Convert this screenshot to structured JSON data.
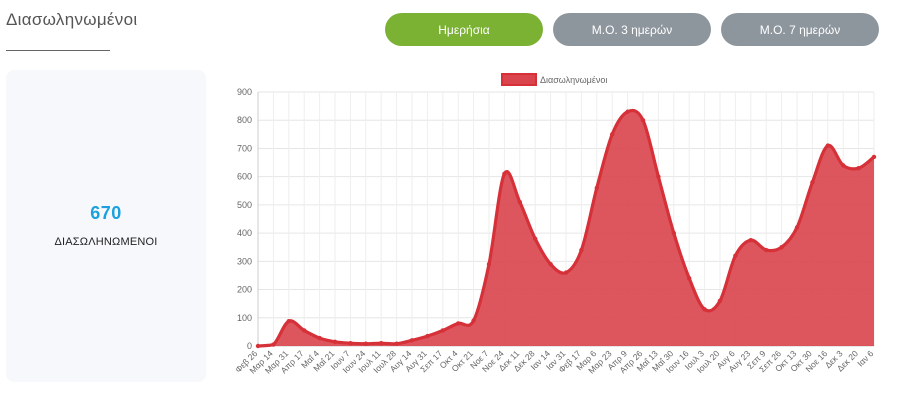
{
  "header": {
    "title": "Διασωληνωμένοι"
  },
  "toggles": {
    "daily": "Ημερήσια",
    "avg3": "Μ.Ο. 3 ημερών",
    "avg7": "Μ.Ο. 7 ημερών"
  },
  "stat": {
    "value": "670",
    "label": "ΔΙΑΣΩΛΗΝΩΜΕΝΟΙ"
  },
  "colors": {
    "accent_green": "#7bb234",
    "inactive_grey": "#8e969d",
    "stat_blue": "#1aa1de",
    "series_fill": "#d9444d",
    "series_line": "#d63038"
  },
  "chart_data": {
    "type": "area",
    "title": "",
    "legend": {
      "label": "Διασωληνωμένοι",
      "position": "top-center"
    },
    "xlabel": "",
    "ylabel": "",
    "ylim": [
      0,
      900
    ],
    "yticks": [
      0,
      100,
      200,
      300,
      400,
      500,
      600,
      700,
      800,
      900
    ],
    "grid": true,
    "xtick_labels": [
      "Φεβ 26",
      "Μαρ 14",
      "Μαρ 31",
      "Απρ 17",
      "Μαΐ 4",
      "Μαΐ 21",
      "Ιουν 7",
      "Ιουν 24",
      "Ιουλ 11",
      "Ιουλ 28",
      "Αυγ 14",
      "Αυγ 31",
      "Σεπ 17",
      "Οκτ 4",
      "Οκτ 21",
      "Νοε 7",
      "Νοε 24",
      "Δεκ 11",
      "Δεκ 28",
      "Ιαν 14",
      "Ιαν 31",
      "Φεβ 17",
      "Μαρ 6",
      "Μαρ 23",
      "Απρ 9",
      "Απρ 26",
      "Μαΐ 13",
      "Μαΐ 30",
      "Ιουν 16",
      "Ιουλ 3",
      "Ιουλ 20",
      "Αυγ 6",
      "Αυγ 23",
      "Σεπ 9",
      "Σεπ 26",
      "Οκτ 13",
      "Οκτ 30",
      "Νοε 16",
      "Δεκ 3",
      "Δεκ 20",
      "Ιαν 6"
    ],
    "series": [
      {
        "name": "Διασωληνωμένοι",
        "x_index": [
          0,
          1,
          2,
          3,
          4,
          5,
          6,
          7,
          8,
          9,
          10,
          11,
          12,
          13,
          14,
          15,
          16,
          17,
          18,
          19,
          20,
          21,
          22,
          23,
          24,
          25,
          26,
          27,
          28,
          29,
          30,
          31,
          32,
          33,
          34,
          35,
          36,
          37,
          38,
          39,
          40
        ],
        "values": [
          0,
          5,
          88,
          55,
          28,
          15,
          10,
          8,
          10,
          8,
          20,
          35,
          55,
          80,
          90,
          290,
          610,
          510,
          380,
          290,
          260,
          340,
          560,
          750,
          830,
          800,
          600,
          400,
          240,
          130,
          160,
          320,
          375,
          340,
          350,
          420,
          580,
          710,
          640,
          630,
          670
        ]
      }
    ]
  }
}
